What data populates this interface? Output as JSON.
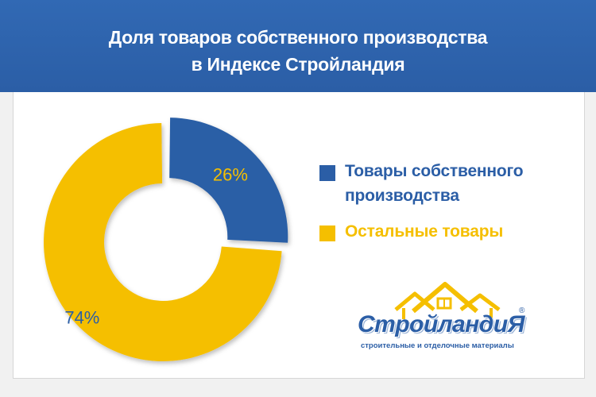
{
  "header": {
    "title_line1": "Доля товаров собственного производства",
    "title_line2": "в Индексе Стройландия"
  },
  "colors": {
    "header_bg": "#2b5ea6",
    "own_products": "#2b5ea6",
    "other_products": "#f5bf00",
    "own_label": "#f5bf00",
    "other_label": "#2b5ea6"
  },
  "chart_data": {
    "type": "pie",
    "style": "donut",
    "slices": [
      {
        "name": "Товары собственного производства",
        "value": 26,
        "label": "26%",
        "color": "#2b5ea6",
        "exploded": true
      },
      {
        "name": "Остальные товары",
        "value": 74,
        "label": "74%",
        "color": "#f5bf00",
        "exploded": false
      }
    ],
    "legend_position": "right"
  },
  "legend": {
    "items": [
      {
        "line1": "Товары собственного",
        "line2": "производства",
        "color": "#2b5ea6"
      },
      {
        "line1": "Остальные товары",
        "line2": "",
        "color": "#f5bf00"
      }
    ]
  },
  "logo": {
    "name": "СтройландиЯ",
    "subtitle": "строительные и отделочные материалы",
    "registered": "®"
  }
}
